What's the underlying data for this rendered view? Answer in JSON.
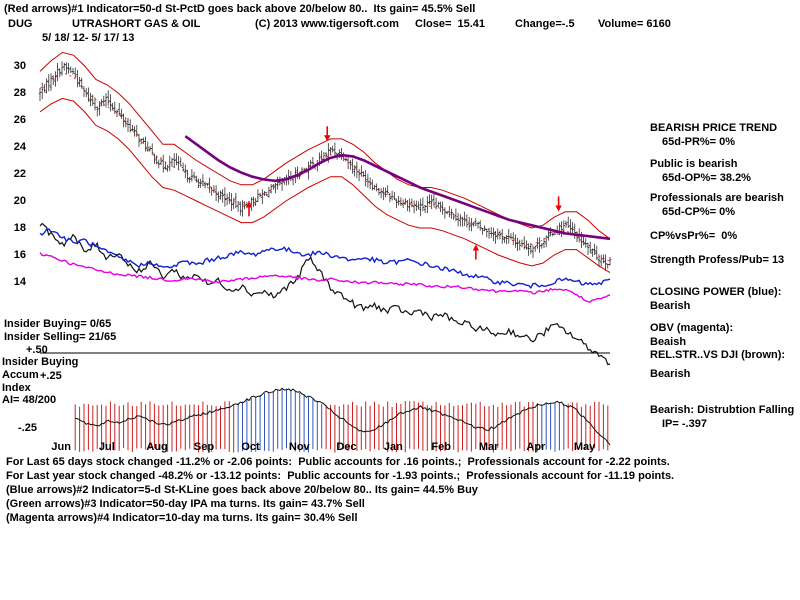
{
  "header": {
    "line1": "(Red arrows)#1 Indicator=50-d St-PctD goes back above 20/below 80..  Its gain= 45.5% Sell",
    "symbol": "DUG",
    "name": "UTRASHORT GAS & OIL",
    "copyright": "(C) 2013 www.tigersoft.com",
    "close_label": "Close=  15.41",
    "change_label": "Change=-.5",
    "volume_label": "Volume= 6160",
    "date_range": "5/ 18/ 12- 5/ 17/ 13"
  },
  "left_panel": {
    "items": [
      "Insider Buying= 0/65",
      "Insider Selling= 21/65",
      "Insider Buying",
      "Accum",
      "Index",
      "AI= 48/200"
    ]
  },
  "right_panel": {
    "items": [
      "BEARISH PRICE TREND",
      "65d-PR%= 0%",
      "Public is bearish",
      "65d-OP%= 38.2%",
      "Professionals are bearish",
      "65d-CP%= 0%",
      "CP%vsPr%=  0%",
      "Strength Profess/Pub= 13",
      "CLOSING POWER (blue):",
      "Bearish",
      "OBV (magenta):",
      "Beaish",
      "REL.STR..VS DJI (brown):",
      "Bearish",
      "Bearish: Distrubtion Falling",
      "IP= -.397"
    ]
  },
  "footer": {
    "lines": [
      "For Last 65 days stock changed -11.2% or -2.06 points:  Public accounts for .16 points.;  Professionals account for -2.22 points.",
      "For Last year stock changed -48.2% or -13.12 points:  Public accounts for -1.93 points.;  Professionals account for -11.19 points.",
      "(Blue arrows)#2 Indicator=5-d St-KLine goes back above 20/below 80.. Its gain= 44.5% Buy",
      "(Green arrows)#3 Indicator=50-day IPA ma turns. Its gain= 43.7% Sell",
      "(Magenta arrows)#4 Indicator=10-day ma turns. Its gain= 30.4% Sell"
    ]
  },
  "chart_data": {
    "type": "candlestick",
    "title": "DUG UTRASHORT GAS & OIL  5/18/12 - 5/17/13",
    "x_months": [
      "Jun",
      "Jul",
      "Aug",
      "Sep",
      "Oct",
      "Nov",
      "Dec",
      "Jan",
      "Feb",
      "Mar",
      "Apr",
      "May"
    ],
    "y_ticks": [
      30,
      28,
      26,
      24,
      22,
      20,
      18,
      16,
      14
    ],
    "ylim": [
      13.5,
      31.5
    ],
    "close_final": 15.41,
    "accum_ticks": {
      "labels": [
        "+.50",
        "+.25",
        "-.25"
      ],
      "values": [
        0.5,
        0.25,
        -0.25
      ]
    },
    "series": {
      "close_weekly": [
        28.0,
        29.0,
        30.0,
        29.5,
        28.0,
        27.0,
        27.5,
        26.5,
        25.5,
        24.5,
        23.5,
        22.5,
        23.0,
        22.0,
        21.5,
        21.0,
        20.5,
        20.0,
        19.5,
        20.0,
        20.5,
        21.0,
        21.5,
        22.0,
        22.5,
        23.0,
        23.8,
        23.5,
        22.5,
        21.8,
        21.0,
        20.5,
        20.0,
        19.8,
        19.5,
        19.8,
        19.5,
        19.0,
        18.5,
        18.2,
        17.8,
        17.5,
        17.2,
        16.8,
        16.5,
        17.0,
        17.8,
        18.2,
        17.5,
        16.5,
        15.8,
        15.41
      ],
      "upper_band": [
        29.6,
        30.4,
        31.0,
        30.8,
        30.0,
        29.0,
        28.6,
        28.0,
        27.2,
        26.2,
        25.2,
        24.2,
        24.2,
        23.6,
        23.0,
        22.5,
        22.0,
        21.5,
        21.2,
        21.2,
        21.6,
        22.2,
        22.8,
        23.3,
        23.8,
        24.2,
        24.6,
        24.6,
        24.2,
        23.6,
        22.8,
        22.2,
        21.6,
        21.2,
        21.0,
        21.0,
        20.8,
        20.5,
        20.2,
        19.8,
        19.4,
        19.0,
        18.6,
        18.3,
        18.0,
        18.2,
        18.8,
        19.2,
        19.2,
        18.6,
        17.8,
        17.2
      ],
      "lower_band": [
        26.6,
        27.2,
        27.6,
        27.4,
        26.6,
        25.6,
        25.2,
        24.6,
        23.8,
        22.8,
        21.8,
        21.0,
        20.8,
        20.4,
        20.0,
        19.6,
        19.2,
        18.8,
        18.4,
        18.4,
        18.8,
        19.4,
        20.0,
        20.5,
        21.0,
        21.4,
        21.8,
        21.8,
        21.2,
        20.4,
        19.6,
        19.0,
        18.6,
        18.2,
        18.0,
        18.0,
        17.8,
        17.5,
        17.2,
        16.8,
        16.4,
        16.0,
        15.7,
        15.4,
        15.2,
        15.4,
        16.0,
        16.4,
        16.4,
        15.8,
        15.2,
        14.7
      ],
      "purple_ma": {
        "start_week": 13,
        "values": [
          24.8,
          24.2,
          23.6,
          23.0,
          22.5,
          22.1,
          21.8,
          21.6,
          21.5,
          21.6,
          21.9,
          22.3,
          22.8,
          23.2,
          23.4,
          23.3,
          23.0,
          22.6,
          22.2,
          21.8,
          21.4,
          21.0,
          20.7,
          20.4,
          20.1,
          19.8,
          19.5,
          19.2,
          18.9,
          18.6,
          18.4,
          18.2,
          18.0,
          17.8,
          17.6,
          17.5,
          17.4,
          17.3,
          17.2
        ]
      },
      "closing_power_blue": [
        17.6,
        17.9,
        17.3,
        16.9,
        17.1,
        16.6,
        16.2,
        15.8,
        15.5,
        15.2,
        15.5,
        15.0,
        15.2,
        15.5,
        15.3,
        15.6,
        15.8,
        16.0,
        16.2,
        16.0,
        16.3,
        16.5,
        16.4,
        16.2,
        16.0,
        16.2,
        16.0,
        15.8,
        15.6,
        15.8,
        15.6,
        15.4,
        15.5,
        15.6,
        15.4,
        15.2,
        15.0,
        14.8,
        14.6,
        14.4,
        14.2,
        14.0,
        13.9,
        13.8,
        13.7,
        13.8,
        14.0,
        14.2,
        14.0,
        13.8,
        13.9,
        14.1
      ],
      "obv_magenta": [
        16.1,
        15.9,
        15.6,
        15.3,
        15.1,
        14.9,
        14.7,
        14.6,
        14.5,
        14.4,
        14.3,
        14.2,
        14.1,
        14.3,
        14.2,
        14.1,
        14.0,
        14.1,
        14.2,
        14.3,
        14.4,
        14.5,
        14.4,
        14.3,
        14.2,
        14.1,
        14.2,
        14.1,
        14.0,
        13.9,
        14.0,
        13.9,
        13.8,
        13.9,
        13.8,
        13.7,
        13.6,
        13.7,
        13.6,
        13.5,
        13.4,
        13.3,
        13.4,
        13.3,
        13.2,
        13.3,
        13.5,
        13.4,
        13.1,
        12.5,
        12.7,
        13.0
      ],
      "rel_str_black": [
        18.2,
        17.6,
        16.8,
        17.4,
        16.2,
        16.8,
        15.8,
        16.2,
        15.2,
        14.8,
        15.4,
        14.4,
        14.9,
        14.2,
        14.6,
        13.8,
        14.1,
        13.4,
        13.7,
        13.1,
        13.3,
        12.9,
        13.6,
        14.2,
        15.8,
        14.8,
        13.6,
        13.0,
        12.4,
        12.0,
        12.3,
        11.8,
        12.1,
        11.6,
        11.9,
        11.4,
        11.6,
        11.1,
        10.9,
        10.6,
        10.4,
        10.1,
        10.4,
        10.0,
        9.7,
        10.2,
        10.8,
        10.4,
        9.8,
        9.2,
        8.6,
        8.0
      ],
      "accum_index": [
        -0.08,
        -0.12,
        -0.18,
        -0.15,
        -0.2,
        -0.24,
        -0.18,
        -0.2,
        -0.16,
        -0.13,
        -0.18,
        -0.22,
        -0.2,
        -0.16,
        -0.13,
        -0.1,
        -0.08,
        -0.04,
        0.0,
        0.04,
        0.08,
        0.11,
        0.13,
        0.1,
        0.05,
        0.0,
        -0.08,
        -0.16,
        -0.24,
        -0.3,
        -0.26,
        -0.2,
        -0.12,
        -0.08,
        -0.05,
        -0.08,
        -0.12,
        -0.16,
        -0.2,
        -0.24,
        -0.27,
        -0.22,
        -0.16,
        -0.1,
        -0.05,
        -0.02,
        0.0,
        -0.02,
        -0.08,
        -0.18,
        -0.3,
        -0.4
      ]
    },
    "arrows": [
      {
        "week": 18.7,
        "price": 19.9,
        "dir": "up"
      },
      {
        "week": 25.7,
        "price": 24.5,
        "dir": "down"
      },
      {
        "week": 39.0,
        "price": 16.7,
        "dir": "up"
      },
      {
        "week": 46.4,
        "price": 19.3,
        "dir": "down"
      }
    ],
    "colors": {
      "price": "#111111",
      "bands": "#cc0000",
      "dotted_ma": "#cc3333",
      "purple_ma": "#76007d",
      "closing_power": "#1122cc",
      "obv": "#e300e3",
      "rel_str": "#111111",
      "accum_pos": "#3355bb",
      "accum_neg": "#cc2222",
      "accum_line": "#111111",
      "arrow": "#ee0000"
    }
  }
}
